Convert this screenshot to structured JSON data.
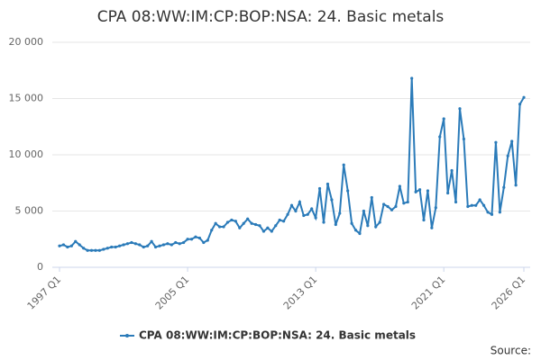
{
  "chart_data": {
    "type": "line",
    "title": "CPA 08:WW:IM:CP:BOP:NSA: 24. Basic metals",
    "source_label": "Source:",
    "categories": [
      "1997 Q1",
      null,
      null,
      null,
      null,
      null,
      null,
      null,
      null,
      null,
      null,
      null,
      null,
      null,
      null,
      null,
      null,
      null,
      null,
      null,
      null,
      null,
      null,
      null,
      null,
      null,
      null,
      null,
      null,
      null,
      null,
      null,
      "2005 Q1",
      null,
      null,
      null,
      null,
      null,
      null,
      null,
      null,
      null,
      null,
      null,
      null,
      null,
      null,
      null,
      null,
      null,
      null,
      null,
      null,
      null,
      null,
      null,
      null,
      null,
      null,
      null,
      null,
      null,
      null,
      null,
      "2013 Q1",
      null,
      null,
      null,
      null,
      null,
      null,
      null,
      null,
      null,
      null,
      null,
      null,
      null,
      null,
      null,
      null,
      null,
      null,
      null,
      null,
      null,
      null,
      null,
      null,
      null,
      null,
      null,
      null,
      null,
      null,
      null,
      "2021 Q1",
      null,
      null,
      null,
      null,
      null,
      null,
      null,
      null,
      null,
      null,
      null,
      null,
      null,
      null,
      null,
      null,
      null,
      null,
      null,
      "2026 Q1"
    ],
    "series": [
      {
        "name": "CPA 08:WW:IM:CP:BOP:NSA: 24. Basic metals",
        "color": "#2b7bb9",
        "values": [
          1900,
          2000,
          1800,
          1900,
          2300,
          2000,
          1700,
          1500,
          1500,
          1500,
          1500,
          1600,
          1700,
          1800,
          1800,
          1900,
          2000,
          2100,
          2200,
          2100,
          2000,
          1800,
          1900,
          2300,
          1800,
          1900,
          2000,
          2100,
          2000,
          2200,
          2100,
          2200,
          2500,
          2500,
          2700,
          2600,
          2200,
          2400,
          3300,
          3900,
          3600,
          3600,
          4000,
          4200,
          4100,
          3500,
          3900,
          4300,
          3900,
          3800,
          3700,
          3200,
          3500,
          3200,
          3700,
          4200,
          4100,
          4700,
          5500,
          5000,
          5800,
          4600,
          4700,
          5200,
          4400,
          7000,
          4000,
          7400,
          6000,
          3800,
          4800,
          9100,
          6800,
          3900,
          3300,
          3000,
          5000,
          3700,
          6200,
          3600,
          4000,
          5600,
          5400,
          5100,
          5400,
          7200,
          5700,
          5800,
          16800,
          6700,
          6900,
          4200,
          6800,
          3500,
          5300,
          11600,
          13200,
          6600,
          8600,
          5800,
          14100,
          11400,
          5400,
          5500,
          5500,
          6000,
          5500,
          4900,
          4700,
          11100,
          4900,
          7100,
          9900,
          11200,
          7300,
          14500,
          15100
        ]
      }
    ],
    "ylim": [
      0,
      20000
    ],
    "yticks": [
      0,
      {
        "value": 5000,
        "label": "5 000"
      },
      {
        "value": 10000,
        "label": "10 000"
      },
      {
        "value": 15000,
        "label": "15 000"
      },
      {
        "value": 20000,
        "label": "20 000"
      }
    ],
    "grid": true
  }
}
